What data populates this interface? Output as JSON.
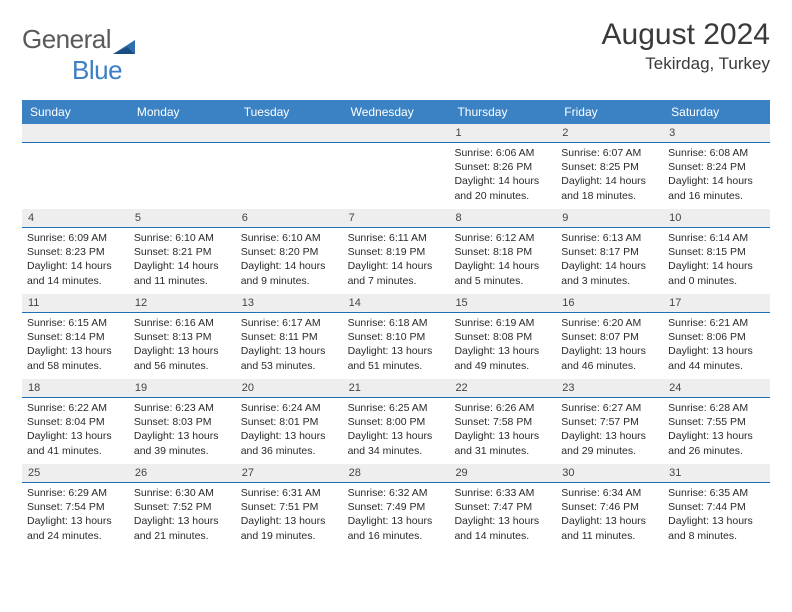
{
  "logo": {
    "text1": "General",
    "text2": "Blue"
  },
  "title": "August 2024",
  "subtitle": "Tekirdag, Turkey",
  "colors": {
    "header_bg": "#3b82c4",
    "rule": "#1e6fb3",
    "num_bg": "#eeeeee",
    "text": "#2a2a2a"
  },
  "daynames": [
    "Sunday",
    "Monday",
    "Tuesday",
    "Wednesday",
    "Thursday",
    "Friday",
    "Saturday"
  ],
  "weeks": [
    {
      "nums": [
        "",
        "",
        "",
        "",
        "1",
        "2",
        "3"
      ],
      "cells": [
        null,
        null,
        null,
        null,
        {
          "sunrise": "6:06 AM",
          "sunset": "8:26 PM",
          "daylight": "14 hours and 20 minutes."
        },
        {
          "sunrise": "6:07 AM",
          "sunset": "8:25 PM",
          "daylight": "14 hours and 18 minutes."
        },
        {
          "sunrise": "6:08 AM",
          "sunset": "8:24 PM",
          "daylight": "14 hours and 16 minutes."
        }
      ]
    },
    {
      "nums": [
        "4",
        "5",
        "6",
        "7",
        "8",
        "9",
        "10"
      ],
      "cells": [
        {
          "sunrise": "6:09 AM",
          "sunset": "8:23 PM",
          "daylight": "14 hours and 14 minutes."
        },
        {
          "sunrise": "6:10 AM",
          "sunset": "8:21 PM",
          "daylight": "14 hours and 11 minutes."
        },
        {
          "sunrise": "6:10 AM",
          "sunset": "8:20 PM",
          "daylight": "14 hours and 9 minutes."
        },
        {
          "sunrise": "6:11 AM",
          "sunset": "8:19 PM",
          "daylight": "14 hours and 7 minutes."
        },
        {
          "sunrise": "6:12 AM",
          "sunset": "8:18 PM",
          "daylight": "14 hours and 5 minutes."
        },
        {
          "sunrise": "6:13 AM",
          "sunset": "8:17 PM",
          "daylight": "14 hours and 3 minutes."
        },
        {
          "sunrise": "6:14 AM",
          "sunset": "8:15 PM",
          "daylight": "14 hours and 0 minutes."
        }
      ]
    },
    {
      "nums": [
        "11",
        "12",
        "13",
        "14",
        "15",
        "16",
        "17"
      ],
      "cells": [
        {
          "sunrise": "6:15 AM",
          "sunset": "8:14 PM",
          "daylight": "13 hours and 58 minutes."
        },
        {
          "sunrise": "6:16 AM",
          "sunset": "8:13 PM",
          "daylight": "13 hours and 56 minutes."
        },
        {
          "sunrise": "6:17 AM",
          "sunset": "8:11 PM",
          "daylight": "13 hours and 53 minutes."
        },
        {
          "sunrise": "6:18 AM",
          "sunset": "8:10 PM",
          "daylight": "13 hours and 51 minutes."
        },
        {
          "sunrise": "6:19 AM",
          "sunset": "8:08 PM",
          "daylight": "13 hours and 49 minutes."
        },
        {
          "sunrise": "6:20 AM",
          "sunset": "8:07 PM",
          "daylight": "13 hours and 46 minutes."
        },
        {
          "sunrise": "6:21 AM",
          "sunset": "8:06 PM",
          "daylight": "13 hours and 44 minutes."
        }
      ]
    },
    {
      "nums": [
        "18",
        "19",
        "20",
        "21",
        "22",
        "23",
        "24"
      ],
      "cells": [
        {
          "sunrise": "6:22 AM",
          "sunset": "8:04 PM",
          "daylight": "13 hours and 41 minutes."
        },
        {
          "sunrise": "6:23 AM",
          "sunset": "8:03 PM",
          "daylight": "13 hours and 39 minutes."
        },
        {
          "sunrise": "6:24 AM",
          "sunset": "8:01 PM",
          "daylight": "13 hours and 36 minutes."
        },
        {
          "sunrise": "6:25 AM",
          "sunset": "8:00 PM",
          "daylight": "13 hours and 34 minutes."
        },
        {
          "sunrise": "6:26 AM",
          "sunset": "7:58 PM",
          "daylight": "13 hours and 31 minutes."
        },
        {
          "sunrise": "6:27 AM",
          "sunset": "7:57 PM",
          "daylight": "13 hours and 29 minutes."
        },
        {
          "sunrise": "6:28 AM",
          "sunset": "7:55 PM",
          "daylight": "13 hours and 26 minutes."
        }
      ]
    },
    {
      "nums": [
        "25",
        "26",
        "27",
        "28",
        "29",
        "30",
        "31"
      ],
      "cells": [
        {
          "sunrise": "6:29 AM",
          "sunset": "7:54 PM",
          "daylight": "13 hours and 24 minutes."
        },
        {
          "sunrise": "6:30 AM",
          "sunset": "7:52 PM",
          "daylight": "13 hours and 21 minutes."
        },
        {
          "sunrise": "6:31 AM",
          "sunset": "7:51 PM",
          "daylight": "13 hours and 19 minutes."
        },
        {
          "sunrise": "6:32 AM",
          "sunset": "7:49 PM",
          "daylight": "13 hours and 16 minutes."
        },
        {
          "sunrise": "6:33 AM",
          "sunset": "7:47 PM",
          "daylight": "13 hours and 14 minutes."
        },
        {
          "sunrise": "6:34 AM",
          "sunset": "7:46 PM",
          "daylight": "13 hours and 11 minutes."
        },
        {
          "sunrise": "6:35 AM",
          "sunset": "7:44 PM",
          "daylight": "13 hours and 8 minutes."
        }
      ]
    }
  ],
  "labels": {
    "sunrise": "Sunrise: ",
    "sunset": "Sunset: ",
    "daylight": "Daylight: "
  }
}
